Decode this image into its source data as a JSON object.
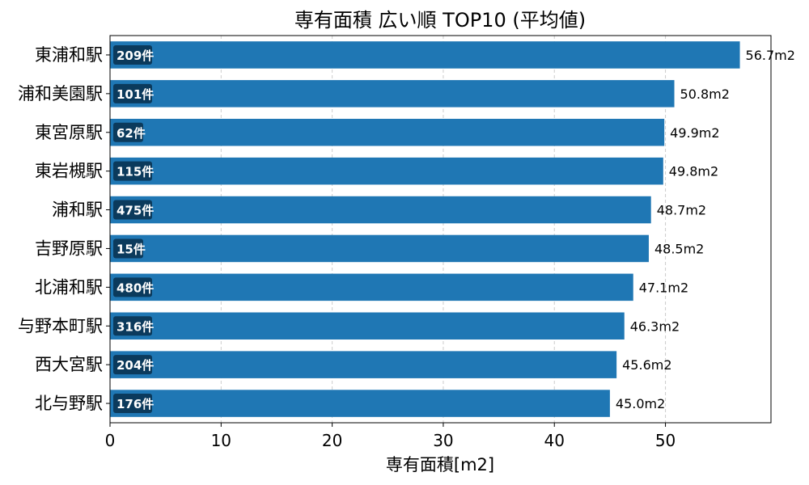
{
  "chart_data": {
    "type": "bar",
    "orientation": "horizontal",
    "title": "専有面積 広い順 TOP10 (平均値)",
    "xlabel": "専有面積[m2]",
    "ylabel": "",
    "xlim": [
      0,
      59.5
    ],
    "xticks": [
      0,
      10,
      20,
      30,
      40,
      50
    ],
    "grid": "x-dashed",
    "bar_color": "#1f77b4",
    "count_badge_color": "#0b3a5c",
    "categories": [
      "東浦和駅",
      "浦和美園駅",
      "東宮原駅",
      "東岩槻駅",
      "浦和駅",
      "吉野原駅",
      "北浦和駅",
      "与野本町駅",
      "西大宮駅",
      "北与野駅"
    ],
    "values": [
      56.7,
      50.8,
      49.9,
      49.8,
      48.7,
      48.5,
      47.1,
      46.3,
      45.6,
      45.0
    ],
    "value_labels": [
      "56.7m2",
      "50.8m2",
      "49.9m2",
      "49.8m2",
      "48.7m2",
      "48.5m2",
      "47.1m2",
      "46.3m2",
      "45.6m2",
      "45.0m2"
    ],
    "counts": [
      "209件",
      "101件",
      "62件",
      "115件",
      "475件",
      "15件",
      "480件",
      "316件",
      "204件",
      "176件"
    ]
  }
}
